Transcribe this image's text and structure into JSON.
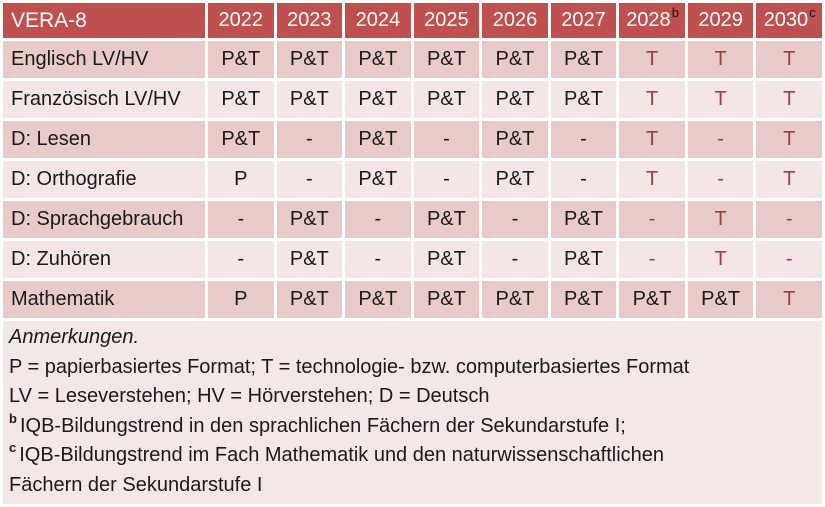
{
  "colors": {
    "header_bg": "#C0504D",
    "header_text": "#FFFFFF",
    "row_dark": "#E8CBC9",
    "row_light": "#F4E6E4",
    "notes_bg": "#F3E8E6",
    "red_text": "#A13E3A",
    "black_text": "#1A1A1A"
  },
  "table": {
    "title": "VERA-8",
    "columns": [
      {
        "label": "2022",
        "sup": ""
      },
      {
        "label": "2023",
        "sup": ""
      },
      {
        "label": "2024",
        "sup": ""
      },
      {
        "label": "2025",
        "sup": ""
      },
      {
        "label": "2026",
        "sup": ""
      },
      {
        "label": "2027",
        "sup": ""
      },
      {
        "label": "2028",
        "sup": "b"
      },
      {
        "label": "2029",
        "sup": ""
      },
      {
        "label": "2030",
        "sup": "c"
      }
    ],
    "rows": [
      {
        "label": "Englisch LV/HV",
        "cells": [
          {
            "t": "P&T"
          },
          {
            "t": "P&T"
          },
          {
            "t": "P&T"
          },
          {
            "t": "P&T"
          },
          {
            "t": "P&T"
          },
          {
            "t": "P&T"
          },
          {
            "t": "T",
            "red": true
          },
          {
            "t": "T",
            "red": true
          },
          {
            "t": "T",
            "red": true
          }
        ]
      },
      {
        "label": "Französisch LV/HV",
        "cells": [
          {
            "t": "P&T"
          },
          {
            "t": "P&T"
          },
          {
            "t": "P&T"
          },
          {
            "t": "P&T"
          },
          {
            "t": "P&T"
          },
          {
            "t": "P&T"
          },
          {
            "t": "T",
            "red": true
          },
          {
            "t": "T",
            "red": true
          },
          {
            "t": "T",
            "red": true
          }
        ]
      },
      {
        "label": "D: Lesen",
        "cells": [
          {
            "t": "P&T"
          },
          {
            "t": "-"
          },
          {
            "t": "P&T"
          },
          {
            "t": "-"
          },
          {
            "t": "P&T"
          },
          {
            "t": "-"
          },
          {
            "t": "T",
            "red": true
          },
          {
            "t": "-",
            "red": true
          },
          {
            "t": "T",
            "red": true
          }
        ]
      },
      {
        "label": "D: Orthografie",
        "cells": [
          {
            "t": "P"
          },
          {
            "t": "-"
          },
          {
            "t": "P&T"
          },
          {
            "t": "-"
          },
          {
            "t": "P&T"
          },
          {
            "t": "-"
          },
          {
            "t": "T",
            "red": true
          },
          {
            "t": "-",
            "red": true
          },
          {
            "t": "T",
            "red": true
          }
        ]
      },
      {
        "label": "D: Sprachgebrauch",
        "cells": [
          {
            "t": "-"
          },
          {
            "t": "P&T"
          },
          {
            "t": "-"
          },
          {
            "t": "P&T"
          },
          {
            "t": "-"
          },
          {
            "t": "P&T"
          },
          {
            "t": "-",
            "red": true
          },
          {
            "t": "T",
            "red": true
          },
          {
            "t": "-",
            "red": true
          }
        ]
      },
      {
        "label": "D: Zuhören",
        "cells": [
          {
            "t": "-"
          },
          {
            "t": "P&T"
          },
          {
            "t": "-"
          },
          {
            "t": "P&T"
          },
          {
            "t": "-"
          },
          {
            "t": "P&T"
          },
          {
            "t": "-",
            "red": true
          },
          {
            "t": "T",
            "red": true
          },
          {
            "t": "-",
            "red": true
          }
        ]
      },
      {
        "label": "Mathematik",
        "cells": [
          {
            "t": "P"
          },
          {
            "t": "P&T"
          },
          {
            "t": "P&T"
          },
          {
            "t": "P&T"
          },
          {
            "t": "P&T"
          },
          {
            "t": "P&T"
          },
          {
            "t": "P&T"
          },
          {
            "t": "P&T"
          },
          {
            "t": "T",
            "red": true
          }
        ]
      }
    ]
  },
  "notes": {
    "lines": [
      {
        "sup": "",
        "italic": true,
        "text": "Anmerkungen."
      },
      {
        "sup": "",
        "italic": false,
        "text": "P = papierbasiertes Format; T = technologie- bzw. computerbasiertes Format"
      },
      {
        "sup": "",
        "italic": false,
        "text": "LV = Leseverstehen; HV = Hörverstehen; D = Deutsch"
      },
      {
        "sup": "b",
        "italic": false,
        "text": "IQB-Bildungstrend in den sprachlichen Fächern der Sekundarstufe I;"
      },
      {
        "sup": "c",
        "italic": false,
        "text": "IQB-Bildungstrend im Fach Mathematik und den naturwissenschaftlichen"
      },
      {
        "sup": "",
        "italic": false,
        "text": "Fächern der Sekundarstufe I"
      }
    ]
  }
}
